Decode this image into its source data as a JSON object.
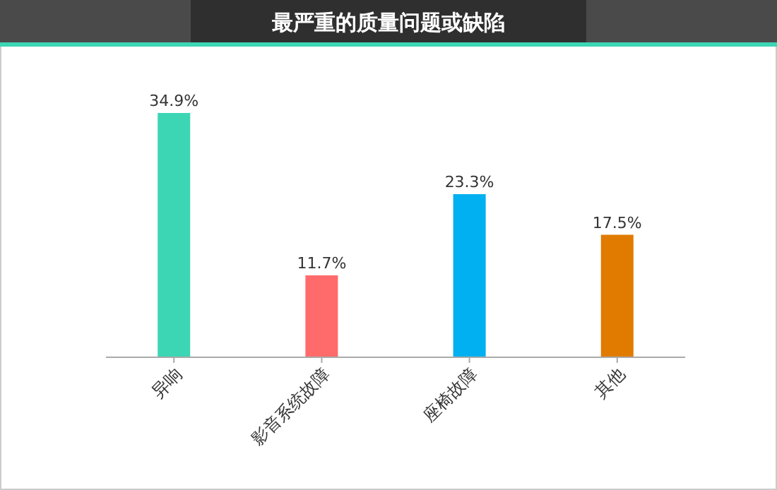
{
  "chart_data": {
    "type": "bar",
    "title": "最严重的质量问题或缺陷",
    "categories": [
      "异响",
      "影音系统故障",
      "座椅故障",
      "其他"
    ],
    "values": [
      34.9,
      11.7,
      23.3,
      17.5
    ],
    "colors": [
      "#3dd6b5",
      "#ff6b6b",
      "#00b0f0",
      "#e07b00"
    ],
    "value_labels": [
      "34.9%",
      "11.7%",
      "23.3%",
      "17.5%"
    ],
    "grid": false
  }
}
